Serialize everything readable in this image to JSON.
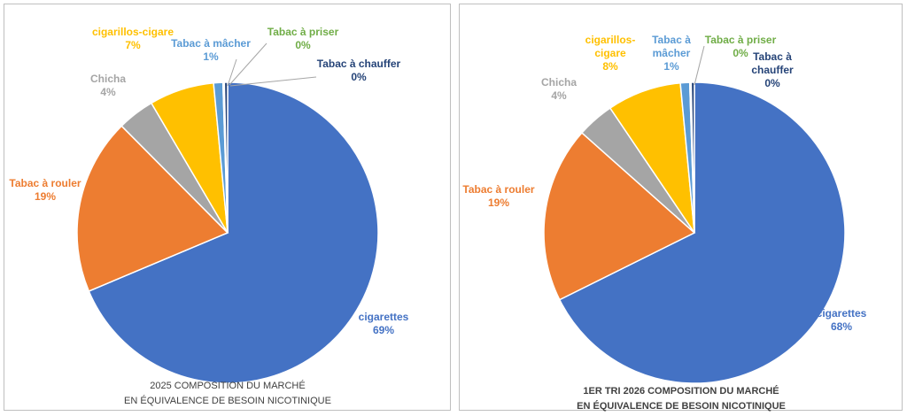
{
  "chart_data": [
    {
      "type": "pie",
      "title_lines": [
        "2025 COMPOSITION DU MARCHÉ",
        "EN ÉQUIVALENCE DE BESOIN NICOTINIQUE"
      ],
      "title_bold": false,
      "slices": [
        {
          "name": "cigarettes",
          "value": 69,
          "label_lines": [
            "cigarettes"
          ],
          "pct": "69%",
          "color": "#4472C4"
        },
        {
          "name": "Tabac à rouler",
          "value": 19,
          "label_lines": [
            "Tabac à rouler"
          ],
          "pct": "19%",
          "color": "#ED7D31"
        },
        {
          "name": "Chicha",
          "value": 4,
          "label_lines": [
            "Chicha"
          ],
          "pct": "4%",
          "color": "#A5A5A5"
        },
        {
          "name": "cigarillos-cigare",
          "value": 7,
          "label_lines": [
            "cigarillos-cigare"
          ],
          "pct": "7%",
          "color": "#FFC000"
        },
        {
          "name": "Tabac à mâcher",
          "value": 1,
          "label_lines": [
            "Tabac à mâcher"
          ],
          "pct": "1%",
          "color": "#5B9BD5"
        },
        {
          "name": "Tabac à priser",
          "value": 0.15,
          "label_lines": [
            "Tabac à priser"
          ],
          "pct": "0%",
          "color": "#70AD47"
        },
        {
          "name": "Tabac à chauffer",
          "value": 0.35,
          "label_lines": [
            "Tabac à chauffer"
          ],
          "pct": "0%",
          "color": "#264478"
        }
      ]
    },
    {
      "type": "pie",
      "title_lines": [
        "1ER TRI 2026 COMPOSITION DU MARCHÉ",
        "EN ÉQUIVALENCE DE BESOIN NICOTINIQUE"
      ],
      "title_bold": true,
      "slices": [
        {
          "name": "cigarettes",
          "value": 68,
          "label_lines": [
            "cigarettes"
          ],
          "pct": "68%",
          "color": "#4472C4"
        },
        {
          "name": "Tabac à rouler",
          "value": 19,
          "label_lines": [
            "Tabac à rouler"
          ],
          "pct": "19%",
          "color": "#ED7D31"
        },
        {
          "name": "Chicha",
          "value": 4,
          "label_lines": [
            "Chicha"
          ],
          "pct": "4%",
          "color": "#A5A5A5"
        },
        {
          "name": "cigarillos-cigare",
          "value": 8,
          "label_lines": [
            "cigarillos-",
            "cigare"
          ],
          "pct": "8%",
          "color": "#FFC000"
        },
        {
          "name": "Tabac à mâcher",
          "value": 1,
          "label_lines": [
            "Tabac à",
            "mâcher"
          ],
          "pct": "1%",
          "color": "#5B9BD5"
        },
        {
          "name": "Tabac à priser",
          "value": 0.15,
          "label_lines": [
            "Tabac à priser"
          ],
          "pct": "0%",
          "color": "#70AD47"
        },
        {
          "name": "Tabac à chauffer",
          "value": 0.35,
          "label_lines": [
            "Tabac à",
            "chauffer"
          ],
          "pct": "0%",
          "color": "#264478"
        }
      ]
    }
  ]
}
